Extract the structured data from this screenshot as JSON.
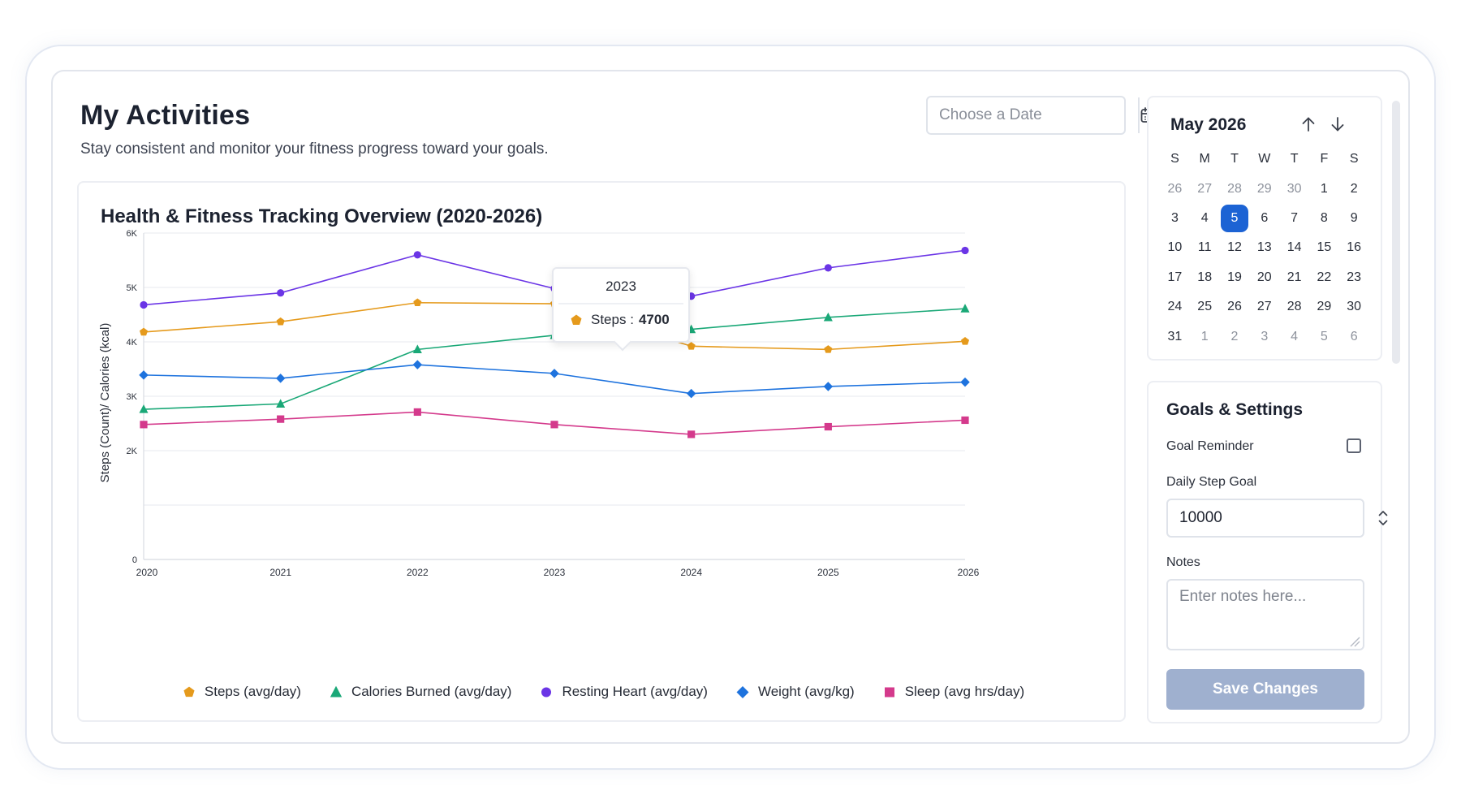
{
  "header": {
    "title": "My Activities",
    "subtitle": "Stay consistent and monitor your fitness progress toward your goals."
  },
  "date_picker": {
    "placeholder": "Choose a Date",
    "icon": "calendar-icon"
  },
  "chart_title": "Health & Fitness Tracking Overview (2020-2026)",
  "chart_data": {
    "type": "line",
    "title": "Health & Fitness Tracking Overview (2020-2026)",
    "xlabel": "",
    "ylabel": "Steps (Count)/ Calories (kcal)",
    "x": [
      "2020",
      "2021",
      "2022",
      "2023",
      "2024",
      "2025",
      "2026"
    ],
    "ylim": [
      0,
      6000
    ],
    "y_ticks": [
      {
        "value": 0,
        "label": "0"
      },
      {
        "value": 1000,
        "label": ""
      },
      {
        "value": 2000,
        "label": "2K"
      },
      {
        "value": 3000,
        "label": "3K"
      },
      {
        "value": 4000,
        "label": "4K"
      },
      {
        "value": 5000,
        "label": "5K"
      },
      {
        "value": 6000,
        "label": "6K"
      }
    ],
    "grid": true,
    "legend_position": "bottom",
    "series": [
      {
        "name": "Steps (avg/day)",
        "color": "#e59a1c",
        "marker": "pentagon",
        "values": [
          4180,
          4370,
          4720,
          4700,
          3920,
          3860,
          4010
        ]
      },
      {
        "name": "Calories Burned (avg/day)",
        "color": "#1aa877",
        "marker": "triangle",
        "values": [
          2760,
          2860,
          3860,
          4120,
          4230,
          4450,
          4610
        ]
      },
      {
        "name": "Resting Heart (avg/day)",
        "color": "#6b35e6",
        "marker": "circle",
        "values": [
          4680,
          4900,
          5600,
          4980,
          4840,
          5360,
          5680
        ]
      },
      {
        "name": "Weight (avg/kg)",
        "color": "#1e73de",
        "marker": "diamond",
        "values": [
          3390,
          3330,
          3580,
          3420,
          3050,
          3180,
          3260
        ]
      },
      {
        "name": "Sleep (avg hrs/day)",
        "color": "#d43a8c",
        "marker": "square",
        "values": [
          2480,
          2580,
          2710,
          2480,
          2300,
          2440,
          2560
        ]
      }
    ],
    "tooltip": {
      "title": "2023",
      "series": "Steps",
      "value": "4700"
    }
  },
  "calendar": {
    "month_label": "May 2026",
    "weekdays": [
      "S",
      "M",
      "T",
      "W",
      "T",
      "F",
      "S"
    ],
    "weeks": [
      [
        {
          "d": "26",
          "m": true
        },
        {
          "d": "27",
          "m": true
        },
        {
          "d": "28",
          "m": true
        },
        {
          "d": "29",
          "m": true
        },
        {
          "d": "30",
          "m": true
        },
        {
          "d": "1"
        },
        {
          "d": "2"
        }
      ],
      [
        {
          "d": "3"
        },
        {
          "d": "4"
        },
        {
          "d": "5",
          "sel": true
        },
        {
          "d": "6"
        },
        {
          "d": "7"
        },
        {
          "d": "8"
        },
        {
          "d": "9"
        }
      ],
      [
        {
          "d": "10"
        },
        {
          "d": "11"
        },
        {
          "d": "12"
        },
        {
          "d": "13"
        },
        {
          "d": "14"
        },
        {
          "d": "15"
        },
        {
          "d": "16"
        }
      ],
      [
        {
          "d": "17"
        },
        {
          "d": "18"
        },
        {
          "d": "19"
        },
        {
          "d": "20"
        },
        {
          "d": "21"
        },
        {
          "d": "22"
        },
        {
          "d": "23"
        }
      ],
      [
        {
          "d": "24"
        },
        {
          "d": "25"
        },
        {
          "d": "26"
        },
        {
          "d": "27"
        },
        {
          "d": "28"
        },
        {
          "d": "29"
        },
        {
          "d": "30"
        }
      ],
      [
        {
          "d": "31"
        },
        {
          "d": "1",
          "m": true
        },
        {
          "d": "2",
          "m": true
        },
        {
          "d": "3",
          "m": true
        },
        {
          "d": "4",
          "m": true
        },
        {
          "d": "5",
          "m": true
        },
        {
          "d": "6",
          "m": true
        }
      ]
    ]
  },
  "settings": {
    "title": "Goals & Settings",
    "goal_reminder_label": "Goal Reminder",
    "goal_reminder_checked": false,
    "daily_step_goal_label": "Daily Step Goal",
    "daily_step_goal_value": "10000",
    "notes_label": "Notes",
    "notes_placeholder": "Enter notes here...",
    "save_label": "Save Changes"
  },
  "colors": {
    "accent": "#1c63d4",
    "save_button": "#9fb0cf"
  }
}
